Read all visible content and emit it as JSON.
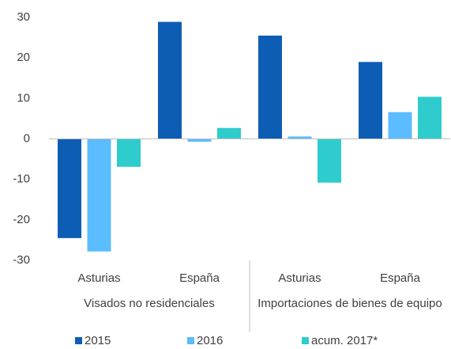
{
  "chart_data": {
    "type": "bar",
    "categories": [
      "Asturias",
      "España",
      "Asturias",
      "España"
    ],
    "groups": [
      "Visados no residenciales",
      "Importaciones de bienes de equipo"
    ],
    "series": [
      {
        "name": "2015",
        "color": "#0d5db5",
        "values": [
          -24.5,
          28.9,
          25.5,
          19.0
        ]
      },
      {
        "name": "2016",
        "color": "#5bbcff",
        "values": [
          -27.8,
          -0.7,
          0.6,
          6.6
        ]
      },
      {
        "name": "acum. 2017*",
        "color": "#2ecccc",
        "values": [
          -6.9,
          2.7,
          -10.8,
          10.4
        ]
      }
    ],
    "ylim": [
      -30,
      30
    ],
    "yticks": [
      -30,
      -20,
      -10,
      0,
      10,
      20,
      30
    ],
    "legend": "bottom"
  }
}
